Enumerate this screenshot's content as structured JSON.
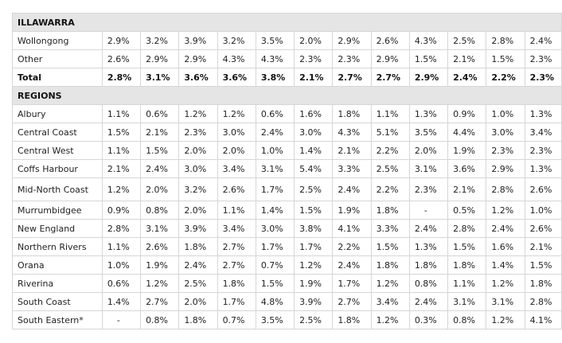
{
  "illawarra": {
    "header": "ILLAWARRA",
    "rows": [
      {
        "label": "Wollongong",
        "values": [
          "2.9%",
          "3.2%",
          "3.9%",
          "3.2%",
          "3.5%",
          "2.0%",
          "2.9%",
          "2.6%",
          "4.3%",
          "2.5%",
          "2.8%",
          "2.4%"
        ]
      },
      {
        "label": "Other",
        "values": [
          "2.6%",
          "2.9%",
          "2.9%",
          "4.3%",
          "4.3%",
          "2.3%",
          "2.3%",
          "2.9%",
          "1.5%",
          "2.1%",
          "1.5%",
          "2.3%"
        ]
      },
      {
        "label": "Total",
        "values": [
          "2.8%",
          "3.1%",
          "3.6%",
          "3.6%",
          "3.8%",
          "2.1%",
          "2.7%",
          "2.7%",
          "2.9%",
          "2.4%",
          "2.2%",
          "2.3%"
        ]
      }
    ]
  },
  "regions": {
    "header": "REGIONS",
    "rows": [
      {
        "label": "Albury",
        "values": [
          "1.1%",
          "0.6%",
          "1.2%",
          "1.2%",
          "0.6%",
          "1.6%",
          "1.8%",
          "1.1%",
          "1.3%",
          "0.9%",
          "1.0%",
          "1.3%"
        ]
      },
      {
        "label": "Central Coast",
        "values": [
          "1.5%",
          "2.1%",
          "2.3%",
          "3.0%",
          "2.4%",
          "3.0%",
          "4.3%",
          "5.1%",
          "3.5%",
          "4.4%",
          "3.0%",
          "3.4%"
        ]
      },
      {
        "label": "Central West",
        "values": [
          "1.1%",
          "1.5%",
          "2.0%",
          "2.0%",
          "1.0%",
          "1.4%",
          "2.1%",
          "2.2%",
          "2.0%",
          "1.9%",
          "2.3%",
          "2.3%"
        ]
      },
      {
        "label": "Coffs Harbour",
        "values": [
          "2.1%",
          "2.4%",
          "3.0%",
          "3.4%",
          "3.1%",
          "5.4%",
          "3.3%",
          "2.5%",
          "3.1%",
          "3.6%",
          "2.9%",
          "1.3%"
        ]
      },
      {
        "label": "Mid-North Coast",
        "values": [
          "1.2%",
          "2.0%",
          "3.2%",
          "2.6%",
          "1.7%",
          "2.5%",
          "2.4%",
          "2.2%",
          "2.3%",
          "2.1%",
          "2.8%",
          "2.6%"
        ]
      },
      {
        "label": "Murrumbidgee",
        "values": [
          "0.9%",
          "0.8%",
          "2.0%",
          "1.1%",
          "1.4%",
          "1.5%",
          "1.9%",
          "1.8%",
          "-",
          "0.5%",
          "1.2%",
          "1.0%"
        ]
      },
      {
        "label": "New England",
        "values": [
          "2.8%",
          "3.1%",
          "3.9%",
          "3.4%",
          "3.0%",
          "3.8%",
          "4.1%",
          "3.3%",
          "2.4%",
          "2.8%",
          "2.4%",
          "2.6%"
        ]
      },
      {
        "label": "Northern Rivers",
        "values": [
          "1.1%",
          "2.6%",
          "1.8%",
          "2.7%",
          "1.7%",
          "1.7%",
          "2.2%",
          "1.5%",
          "1.3%",
          "1.5%",
          "1.6%",
          "2.1%"
        ]
      },
      {
        "label": "Orana",
        "values": [
          "1.0%",
          "1.9%",
          "2.4%",
          "2.7%",
          "0.7%",
          "1.2%",
          "2.4%",
          "1.8%",
          "1.8%",
          "1.8%",
          "1.4%",
          "1.5%"
        ]
      },
      {
        "label": "Riverina",
        "values": [
          "0.6%",
          "1.2%",
          "2.5%",
          "1.8%",
          "1.5%",
          "1.9%",
          "1.7%",
          "1.2%",
          "0.8%",
          "1.1%",
          "1.2%",
          "1.8%"
        ]
      },
      {
        "label": "South Coast",
        "values": [
          "1.4%",
          "2.7%",
          "2.0%",
          "1.7%",
          "4.8%",
          "3.9%",
          "2.7%",
          "3.4%",
          "2.4%",
          "3.1%",
          "3.1%",
          "2.8%"
        ]
      },
      {
        "label": "South Eastern*",
        "values": [
          "-",
          "0.8%",
          "1.8%",
          "0.7%",
          "3.5%",
          "2.5%",
          "1.8%",
          "1.2%",
          "0.3%",
          "0.8%",
          "1.2%",
          "4.1%"
        ]
      }
    ]
  }
}
